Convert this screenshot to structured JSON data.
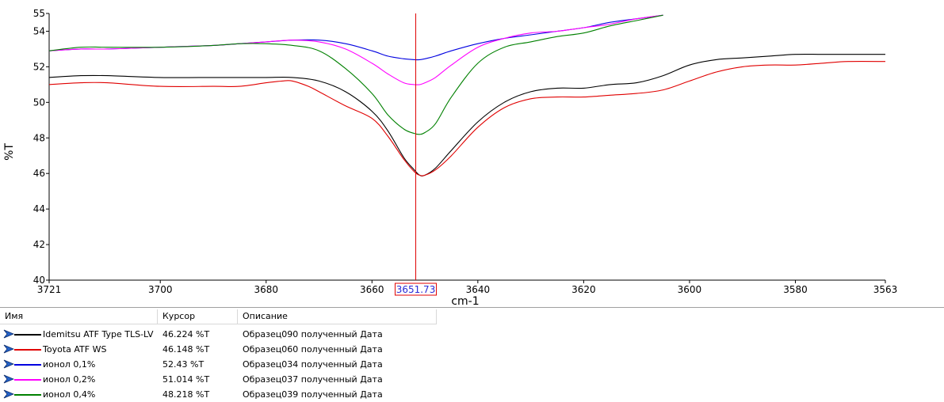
{
  "chart_data": {
    "type": "line",
    "xlabel": "cm-1",
    "ylabel": "%T",
    "xlim": [
      3721,
      3563
    ],
    "ylim": [
      40,
      55
    ],
    "x_reversed": true,
    "x_ticks": [
      3721,
      3700,
      3680,
      3660,
      3640,
      3620,
      3600,
      3580,
      3563
    ],
    "y_ticks": [
      40,
      42,
      44,
      46,
      48,
      50,
      52,
      54,
      55
    ],
    "grid": false,
    "cursor": {
      "x": 3651.73,
      "label": "3651.73",
      "color": "#e00000"
    },
    "series": [
      {
        "name": "Idemitsu ATF Type TLS-LV",
        "color": "#000000",
        "x": [
          3721,
          3715,
          3710,
          3700,
          3690,
          3685,
          3680,
          3675,
          3670,
          3665,
          3660,
          3657,
          3654,
          3652,
          3651,
          3650,
          3648,
          3645,
          3640,
          3635,
          3630,
          3625,
          3620,
          3615,
          3610,
          3605,
          3600,
          3595,
          3590,
          3585,
          3580,
          3575,
          3570,
          3563
        ],
        "y": [
          51.4,
          51.5,
          51.5,
          51.4,
          51.4,
          51.4,
          51.4,
          51.4,
          51.2,
          50.6,
          49.5,
          48.4,
          46.9,
          46.2,
          45.9,
          45.9,
          46.3,
          47.3,
          48.9,
          50.0,
          50.6,
          50.8,
          50.8,
          51.0,
          51.1,
          51.5,
          52.1,
          52.4,
          52.5,
          52.6,
          52.7,
          52.7,
          52.7,
          52.7
        ]
      },
      {
        "name": "Toyota ATF WS",
        "color": "#e00000",
        "x": [
          3721,
          3715,
          3710,
          3700,
          3690,
          3685,
          3680,
          3677,
          3675,
          3672,
          3670,
          3665,
          3660,
          3657,
          3654,
          3652,
          3651,
          3650,
          3648,
          3645,
          3640,
          3635,
          3630,
          3625,
          3620,
          3615,
          3610,
          3605,
          3600,
          3595,
          3590,
          3585,
          3580,
          3575,
          3570,
          3563
        ],
        "y": [
          51.0,
          51.1,
          51.1,
          50.9,
          50.9,
          50.9,
          51.1,
          51.2,
          51.2,
          50.9,
          50.6,
          49.8,
          49.1,
          48.1,
          46.8,
          46.1,
          45.9,
          45.9,
          46.2,
          47.0,
          48.6,
          49.7,
          50.2,
          50.3,
          50.3,
          50.4,
          50.5,
          50.7,
          51.2,
          51.7,
          52.0,
          52.1,
          52.1,
          52.2,
          52.3,
          52.3
        ]
      },
      {
        "name": "ионол 0,1%",
        "color": "#0000e0",
        "x": [
          3721,
          3715,
          3710,
          3700,
          3690,
          3685,
          3680,
          3675,
          3670,
          3665,
          3660,
          3657,
          3654,
          3652,
          3651,
          3650,
          3648,
          3645,
          3640,
          3635,
          3630,
          3625,
          3620,
          3615,
          3610,
          3605
        ],
        "y": [
          52.9,
          53.0,
          53.0,
          53.1,
          53.2,
          53.3,
          53.4,
          53.5,
          53.5,
          53.3,
          52.9,
          52.6,
          52.45,
          52.4,
          52.4,
          52.45,
          52.6,
          52.9,
          53.3,
          53.6,
          53.8,
          54.0,
          54.2,
          54.5,
          54.7,
          54.9
        ]
      },
      {
        "name": "ионол 0,2%",
        "color": "#ff00ff",
        "x": [
          3721,
          3715,
          3710,
          3700,
          3690,
          3685,
          3680,
          3675,
          3670,
          3665,
          3660,
          3657,
          3654,
          3652,
          3651,
          3650,
          3648,
          3645,
          3640,
          3635,
          3630,
          3625,
          3620,
          3615,
          3610,
          3605
        ],
        "y": [
          52.9,
          53.0,
          53.0,
          53.1,
          53.2,
          53.3,
          53.4,
          53.5,
          53.4,
          53.0,
          52.2,
          51.6,
          51.1,
          51.0,
          51.0,
          51.1,
          51.4,
          52.1,
          53.1,
          53.6,
          53.9,
          54.0,
          54.2,
          54.4,
          54.7,
          54.9
        ]
      },
      {
        "name": "ионол 0,4%",
        "color": "#008000",
        "x": [
          3721,
          3715,
          3710,
          3700,
          3690,
          3685,
          3680,
          3675,
          3670,
          3665,
          3660,
          3657,
          3654,
          3652,
          3651,
          3650,
          3648,
          3645,
          3640,
          3635,
          3630,
          3625,
          3620,
          3615,
          3610,
          3605
        ],
        "y": [
          52.9,
          53.1,
          53.1,
          53.1,
          53.2,
          53.3,
          53.3,
          53.2,
          52.9,
          51.9,
          50.5,
          49.3,
          48.5,
          48.25,
          48.2,
          48.3,
          48.8,
          50.3,
          52.2,
          53.1,
          53.4,
          53.7,
          53.9,
          54.3,
          54.6,
          54.9
        ]
      }
    ]
  },
  "legend": {
    "headers": {
      "name": "Имя",
      "cursor": "Курсор",
      "description": "Описание"
    },
    "rows": [
      {
        "name": "Idemitsu ATF Type TLS-LV",
        "cursor": "46.224 %T",
        "description": "Образец090 полученный  Дата",
        "color": "#000000"
      },
      {
        "name": "Toyota ATF WS",
        "cursor": "46.148 %T",
        "description": "Образец060 полученный  Дата",
        "color": "#e00000"
      },
      {
        "name": "ионол 0,1%",
        "cursor": "52.43 %T",
        "description": "Образец034 полученный  Дата",
        "color": "#0000e0"
      },
      {
        "name": "ионол 0,2%",
        "cursor": "51.014 %T",
        "description": "Образец037 полученный  Дата",
        "color": "#ff00ff"
      },
      {
        "name": "ионол 0,4%",
        "cursor": "48.218 %T",
        "description": "Образец039 полученный  Дата",
        "color": "#008000"
      }
    ]
  }
}
